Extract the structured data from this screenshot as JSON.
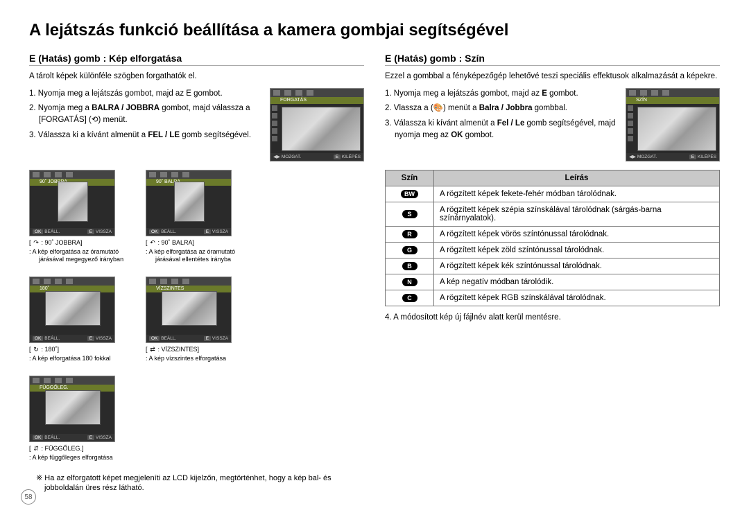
{
  "title": "A lejátszás funkció beállítása a kamera gombjai segítségével",
  "pageNumber": "58",
  "left": {
    "heading": "E (Hatás) gomb : Kép elforgatása",
    "intro": "A tárolt képek különféle szögben forgathatók el.",
    "steps": [
      "1. Nyomja meg a lejátszás gombot, majd az E gombot.",
      "2. Nyomja meg a <b>BALRA / JOBBRA</b> gombot, majd válassza a [FORGATÁS] (⟲) menüt.",
      "3. Válassza ki a kívánt almenüt a <b>FEL / LE</b> gomb segítségével."
    ],
    "mainLcd": {
      "label": "FORGATÁS",
      "bottomLeft": "MOZGAT.",
      "bottomBtn": "E",
      "bottomRight": "KILÉPÉS"
    },
    "thumbs": [
      {
        "label": "90˚ JOBBRA",
        "arrow": "↷",
        "caption": ": 90˚ JOBBRA]",
        "desc": ": A kép elforgatása az óramutató járásával megegyező irányban",
        "ok": "OK",
        "okText": "BEÁLL.",
        "e": "E",
        "eText": "VISSZA"
      },
      {
        "label": "90˚ BALRA",
        "arrow": "↶",
        "caption": ": 90˚ BALRA]",
        "desc": ": A kép elforgatása az óramutató járásával ellentétes irányba",
        "ok": "OK",
        "okText": "BEÁLL.",
        "e": "E",
        "eText": "VISSZA"
      },
      {
        "label": "180˚",
        "arrow": "↻",
        "caption": ": 180˚]",
        "desc": ": A kép elforgatása 180 fokkal",
        "ok": "OK",
        "okText": "BEÁLL.",
        "e": "E",
        "eText": "VISSZA"
      },
      {
        "label": "VÍZSZINTES",
        "arrow": "⇄",
        "caption": ": VÍZSZINTES]",
        "desc": ": A kép vízszintes elforgatása",
        "ok": "OK",
        "okText": "BEÁLL.",
        "e": "E",
        "eText": "VISSZA"
      },
      {
        "label": "FÜGGŐLEG.",
        "arrow": "⇵",
        "caption": ": FÜGGŐLEG.]",
        "desc": ": A kép függőleges elforgatása",
        "ok": "OK",
        "okText": "BEÁLL.",
        "e": "E",
        "eText": "VISSZA"
      }
    ],
    "note": "Ha az elforgatott képet megjeleníti az LCD kijelzőn, megtörténhet, hogy a kép bal- és jobboldalán üres rész látható."
  },
  "right": {
    "heading": "E (Hatás) gomb : Szín",
    "intro": "Ezzel a gombbal a fényképezőgép lehetővé teszi speciális effektusok alkalmazását a képekre.",
    "steps": [
      "1. Nyomja meg a lejátszás gombot, majd az <b>E</b> gombot.",
      "2. Vlassza a (🎨) menüt a <b>Balra / Jobbra</b> gombbal.",
      "3. Válassza ki kívánt almenüt a <b>Fel / Le</b> gomb segítségével, majd nyomja meg az <b>OK</b> gombot."
    ],
    "mainLcd": {
      "label": "SZÍN",
      "bottomLeft": "MOZGAT.",
      "bottomBtn": "E",
      "bottomRight": "KILÉPÉS"
    },
    "table": {
      "headers": [
        "Szín",
        "Leírás"
      ],
      "rows": [
        {
          "icon": "BW",
          "desc": "A rögzített képek fekete-fehér módban tárolódnak."
        },
        {
          "icon": "S",
          "desc": "A rögzített képek szépia színskálával tárolódnak (sárgás-barna színárnyalatok)."
        },
        {
          "icon": "R",
          "desc": "A rögzített képek vörös színtónussal tárolódnak."
        },
        {
          "icon": "G",
          "desc": "A rögzített képek zöld színtónussal tárolódnak."
        },
        {
          "icon": "B",
          "desc": "A rögzített képek kék színtónussal tárolódnak."
        },
        {
          "icon": "N",
          "desc": "A kép negatív módban tárolódik."
        },
        {
          "icon": "C",
          "desc": "A rögzített képek RGB színskálával tárolódnak."
        }
      ]
    },
    "afterTable": "4. A módosított kép új fájlnév alatt kerül mentésre."
  }
}
